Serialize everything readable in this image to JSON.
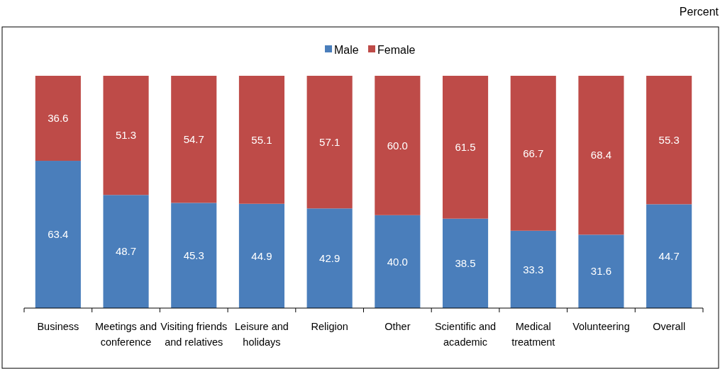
{
  "chart_data": {
    "type": "bar",
    "stacked": true,
    "annotations": [
      "Percent"
    ],
    "categories": [
      "Business",
      "Meetings and conference",
      "Visiting friends and relatives",
      "Leisure and holidays",
      "Religion",
      "Other",
      "Scientific and academic",
      "Medical treatment",
      "Volunteering",
      "Overall"
    ],
    "series": [
      {
        "name": "Male",
        "color": "#4a7ebb",
        "values": [
          63.4,
          48.7,
          45.3,
          44.9,
          42.9,
          40.0,
          38.5,
          33.3,
          31.6,
          44.7
        ],
        "value_labels": [
          "63.4",
          "48.7",
          "45.3",
          "44.9",
          "42.9",
          "40.0",
          "38.5",
          "33.3",
          "31.6",
          "44.7"
        ]
      },
      {
        "name": "Female",
        "color": "#be4b48",
        "values": [
          36.6,
          51.3,
          54.7,
          55.1,
          57.1,
          60.0,
          61.5,
          66.7,
          68.4,
          55.3
        ],
        "value_labels": [
          "36.6",
          "51.3",
          "54.7",
          "55.1",
          "57.1",
          "60.0",
          "61.5",
          "66.7",
          "68.4",
          "55.3"
        ]
      }
    ],
    "ylim": [
      0,
      100
    ],
    "tick_labels": "x",
    "legend": "top"
  }
}
